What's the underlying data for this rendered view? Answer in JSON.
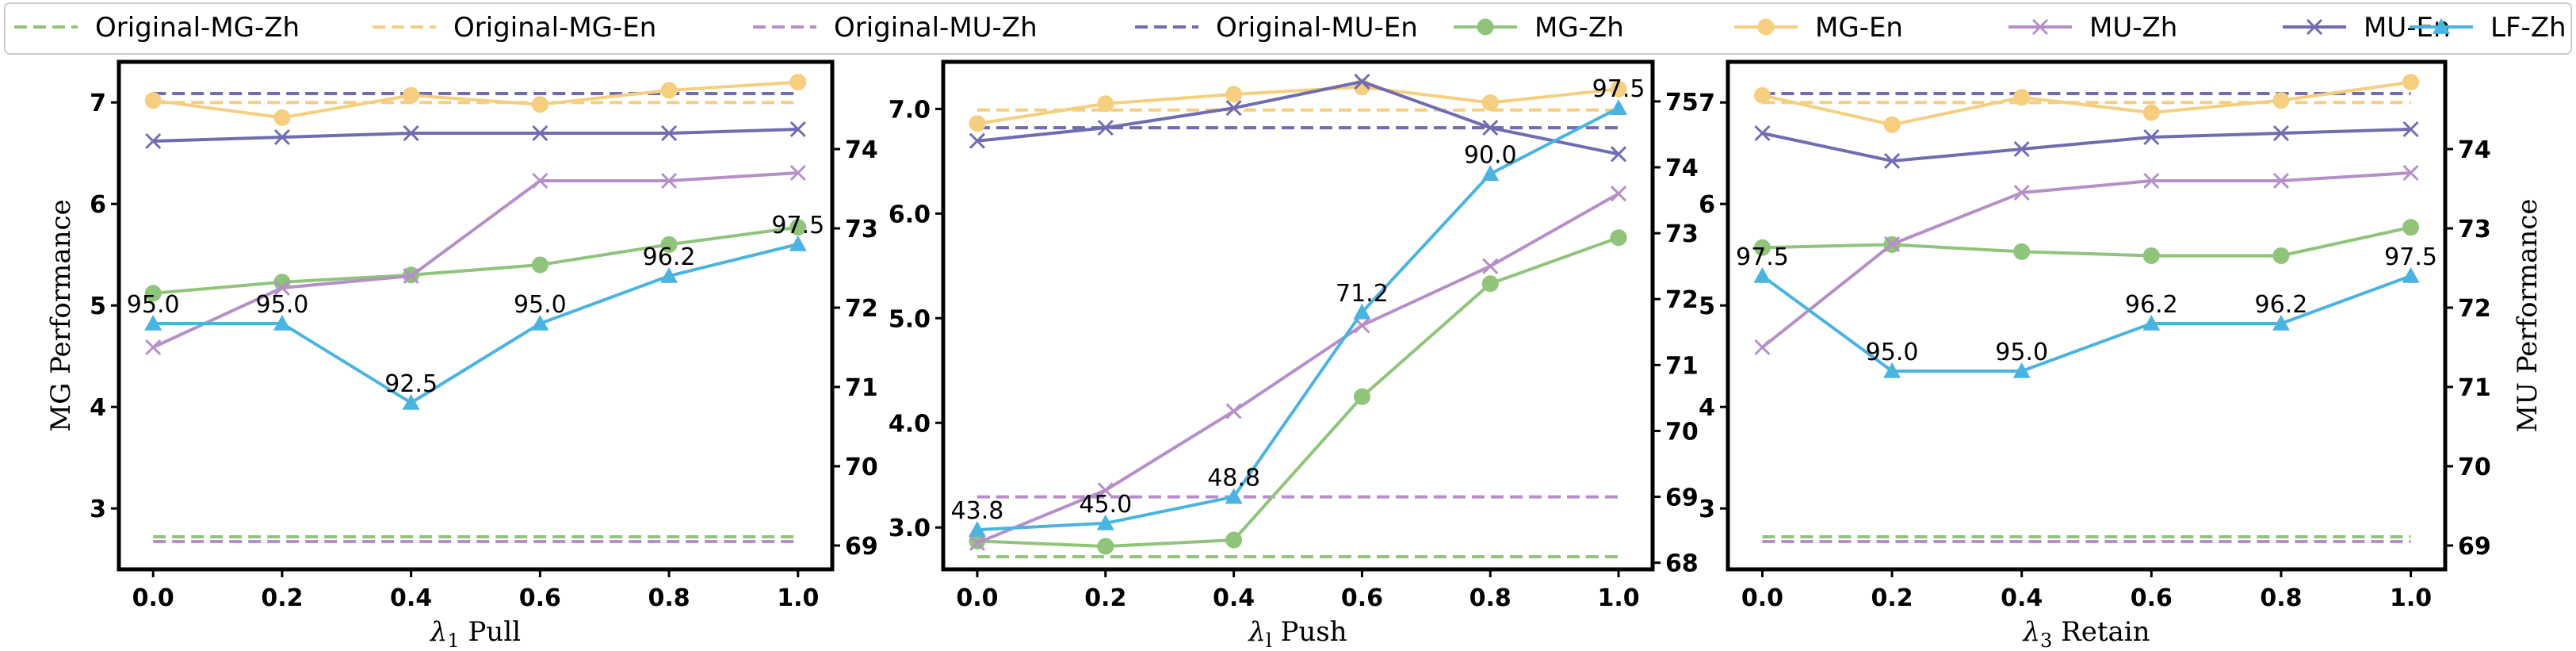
{
  "colors": {
    "mg_zh": "#8fc47a",
    "mg_en": "#f5cf7f",
    "mu_zh": "#b68fc9",
    "mu_en": "#6f6cb2",
    "lf_zh": "#4bb3e0"
  },
  "legend": [
    {
      "key": "orig_mg_zh",
      "label": "Original-MG-Zh",
      "color": "mg_zh",
      "style": "dashed"
    },
    {
      "key": "orig_mg_en",
      "label": "Original-MG-En",
      "color": "mg_en",
      "style": "dashed"
    },
    {
      "key": "orig_mu_zh",
      "label": "Original-MU-Zh",
      "color": "mu_zh",
      "style": "dashed"
    },
    {
      "key": "orig_mu_en",
      "label": "Original-MU-En",
      "color": "mu_en",
      "style": "dashed"
    },
    {
      "key": "mg_zh",
      "label": "MG-Zh",
      "color": "mg_zh",
      "style": "circle"
    },
    {
      "key": "mg_en",
      "label": "MG-En",
      "color": "mg_en",
      "style": "circle"
    },
    {
      "key": "mu_zh",
      "label": "MU-Zh",
      "color": "mu_zh",
      "style": "x"
    },
    {
      "key": "mu_en",
      "label": "MU-En",
      "color": "mu_en",
      "style": "x"
    },
    {
      "key": "lf_zh",
      "label": "LF-Zh",
      "color": "lf_zh",
      "style": "triangle"
    }
  ],
  "chart_data": [
    {
      "type": "line",
      "xlabel_symbol": "λ",
      "xlabel_sub": "1",
      "xlabel_text": " Pull",
      "ylabel_left": "MG Performance",
      "ylabel_right": "",
      "x": [
        0.0,
        0.2,
        0.4,
        0.6,
        0.8,
        1.0
      ],
      "x_ticks": [
        "0.0",
        "0.2",
        "0.4",
        "0.6",
        "0.8",
        "1.0"
      ],
      "ylim_left": [
        2.4,
        7.4
      ],
      "left_ticks": [
        3,
        4,
        5,
        6,
        7
      ],
      "left_tick_labels": [
        "3",
        "4",
        "5",
        "6",
        "7"
      ],
      "ylim_right": [
        68.7,
        75.1
      ],
      "right_ticks": [
        69,
        70,
        71,
        72,
        73,
        74
      ],
      "right_tick_labels": [
        "69",
        "70",
        "71",
        "72",
        "73",
        "74"
      ],
      "baselines": {
        "orig_mg_zh": 2.72,
        "orig_mg_en": 7.0,
        "orig_mu_zh": 69.05,
        "orig_mu_en": 74.7
      },
      "series": {
        "mg_zh": [
          5.12,
          5.23,
          5.3,
          5.4,
          5.6,
          5.77
        ],
        "mg_en": [
          7.02,
          6.85,
          7.07,
          6.98,
          7.12,
          7.2
        ],
        "mu_zh": [
          71.5,
          72.25,
          72.4,
          73.6,
          73.6,
          73.7
        ],
        "mu_en": [
          74.1,
          74.15,
          74.2,
          74.2,
          74.2,
          74.25
        ],
        "lf_zh": [
          71.8,
          71.8,
          70.8,
          71.8,
          72.4,
          72.8
        ]
      },
      "lf_labels": [
        "95.0",
        "95.0",
        "92.5",
        "95.0",
        "96.2",
        "97.5"
      ]
    },
    {
      "type": "line",
      "xlabel_symbol": "λ",
      "xlabel_sub": "l",
      "xlabel_text": " Push",
      "ylabel_left": "",
      "ylabel_right": "",
      "x": [
        0.0,
        0.2,
        0.4,
        0.6,
        0.8,
        1.0
      ],
      "x_ticks": [
        "0.0",
        "0.2",
        "0.4",
        "0.6",
        "0.8",
        "1.0"
      ],
      "ylim_left": [
        2.6,
        7.45
      ],
      "left_ticks": [
        3.0,
        4.0,
        5.0,
        6.0,
        7.0
      ],
      "left_tick_labels": [
        "3.0",
        "4.0",
        "5.0",
        "6.0",
        "7.0"
      ],
      "ylim_right": [
        67.9,
        75.6
      ],
      "right_ticks": [
        68,
        69,
        70,
        71,
        72,
        73,
        74,
        75
      ],
      "right_tick_labels": [
        "68",
        "69",
        "70",
        "71",
        "72",
        "73",
        "74",
        "75"
      ],
      "baselines": {
        "orig_mg_zh": 2.72,
        "orig_mg_en": 6.99,
        "orig_mu_zh": 69.0,
        "orig_mu_en": 74.6
      },
      "series": {
        "mg_zh": [
          2.87,
          2.82,
          2.88,
          4.25,
          5.33,
          5.77
        ],
        "mg_en": [
          6.86,
          7.05,
          7.14,
          7.21,
          7.06,
          7.19
        ],
        "mu_zh": [
          68.3,
          69.1,
          70.3,
          71.6,
          72.5,
          73.6
        ],
        "mu_en": [
          74.4,
          74.6,
          74.9,
          75.3,
          74.6,
          74.2
        ],
        "lf_zh": [
          68.5,
          68.6,
          69.0,
          71.8,
          73.9,
          74.9
        ]
      },
      "lf_labels": [
        "43.8",
        "45.0",
        "48.8",
        "71.2",
        "90.0",
        "97.5"
      ]
    },
    {
      "type": "line",
      "xlabel_symbol": "λ",
      "xlabel_sub": "3",
      "xlabel_text": " Retain",
      "ylabel_left": "",
      "ylabel_right": "MU Performance",
      "x": [
        0.0,
        0.2,
        0.4,
        0.6,
        0.8,
        1.0
      ],
      "x_ticks": [
        "0.0",
        "0.2",
        "0.4",
        "0.6",
        "0.8",
        "1.0"
      ],
      "ylim_left": [
        2.4,
        7.4
      ],
      "left_ticks": [
        3,
        4,
        5,
        6,
        7
      ],
      "left_tick_labels": [
        "3",
        "4",
        "5",
        "6",
        "7"
      ],
      "ylim_right": [
        68.7,
        75.1
      ],
      "right_ticks": [
        69,
        70,
        71,
        72,
        73,
        74
      ],
      "right_tick_labels": [
        "69",
        "70",
        "71",
        "72",
        "73",
        "74"
      ],
      "baselines": {
        "orig_mg_zh": 2.72,
        "orig_mg_en": 7.0,
        "orig_mu_zh": 69.05,
        "orig_mu_en": 74.7
      },
      "series": {
        "mg_zh": [
          5.57,
          5.6,
          5.53,
          5.49,
          5.49,
          5.77
        ],
        "mg_en": [
          7.07,
          6.78,
          7.05,
          6.9,
          7.02,
          7.2
        ],
        "mu_zh": [
          71.5,
          72.8,
          73.45,
          73.6,
          73.6,
          73.7
        ],
        "mu_en": [
          74.2,
          73.85,
          74.0,
          74.15,
          74.2,
          74.25
        ],
        "lf_zh": [
          72.4,
          71.2,
          71.2,
          71.8,
          71.8,
          72.4
        ]
      },
      "lf_labels": [
        "97.5",
        "95.0",
        "95.0",
        "96.2",
        "96.2",
        "97.5"
      ]
    }
  ]
}
